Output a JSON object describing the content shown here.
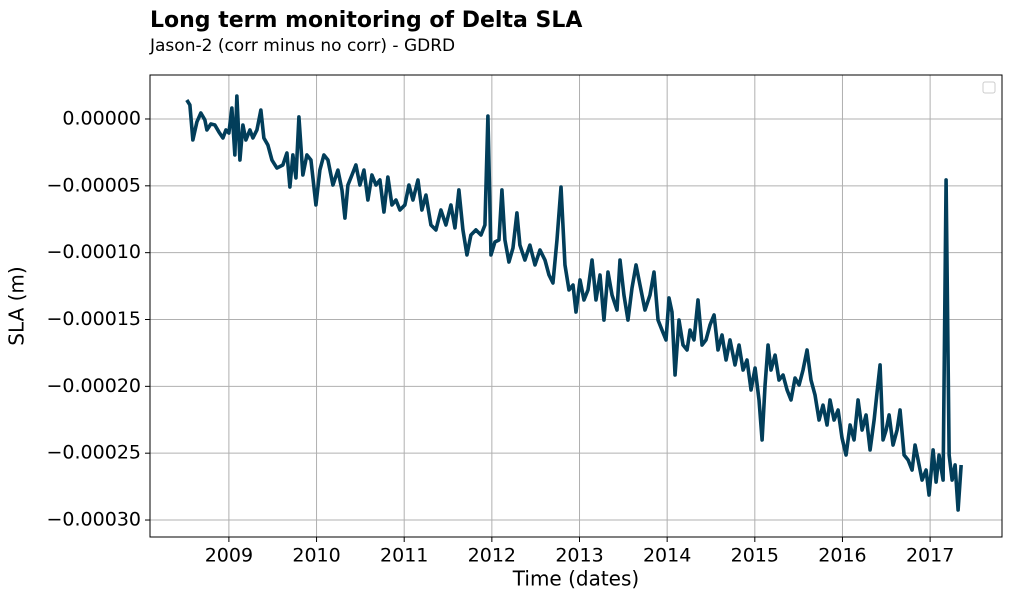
{
  "chart_data": {
    "type": "line",
    "title": "Long term monitoring of Delta SLA",
    "subtitle": "Jason-2 (corr minus no corr) - GDRD",
    "x_label": "Time (dates)",
    "y_label": "SLA (m)",
    "grid": true,
    "xlim": [
      2008.1,
      2017.82
    ],
    "ylim": [
      -0.0003127,
      3.29e-05
    ],
    "xticks": [
      2009,
      2010,
      2011,
      2012,
      2013,
      2014,
      2015,
      2016,
      2017
    ],
    "yticks": [
      {
        "value": 0,
        "label": "0.00000"
      },
      {
        "value": -5e-05,
        "label": "−0.00005"
      },
      {
        "value": -0.0001,
        "label": "−0.00010"
      },
      {
        "value": -0.00015,
        "label": "−0.00015"
      },
      {
        "value": -0.0002,
        "label": "−0.00020"
      },
      {
        "value": -0.00025,
        "label": "−0.00025"
      },
      {
        "value": -0.0003,
        "label": "−0.00030"
      }
    ],
    "x": [
      2008.52,
      2008.555,
      2008.589,
      2008.635,
      2008.68,
      2008.726,
      2008.749,
      2008.795,
      2008.84,
      2008.886,
      2008.932,
      2008.966,
      2009.0,
      2009.034,
      2009.068,
      2009.091,
      2009.126,
      2009.16,
      2009.194,
      2009.24,
      2009.274,
      2009.32,
      2009.365,
      2009.399,
      2009.445,
      2009.491,
      2009.548,
      2009.616,
      2009.662,
      2009.696,
      2009.73,
      2009.765,
      2009.799,
      2009.844,
      2009.89,
      2009.936,
      2009.993,
      2010.038,
      2010.084,
      2010.13,
      2010.187,
      2010.244,
      2010.29,
      2010.324,
      2010.358,
      2010.404,
      2010.449,
      2010.495,
      2010.541,
      2010.586,
      2010.632,
      2010.678,
      2010.723,
      2010.769,
      2010.814,
      2010.86,
      2010.906,
      2010.951,
      2011.008,
      2011.054,
      2011.1,
      2011.157,
      2011.202,
      2011.248,
      2011.305,
      2011.362,
      2011.419,
      2011.476,
      2011.533,
      2011.579,
      2011.624,
      2011.67,
      2011.716,
      2011.761,
      2011.818,
      2011.876,
      2011.921,
      2011.955,
      2011.99,
      2012.035,
      2012.081,
      2012.115,
      2012.149,
      2012.195,
      2012.241,
      2012.286,
      2012.32,
      2012.377,
      2012.434,
      2012.492,
      2012.549,
      2012.606,
      2012.652,
      2012.697,
      2012.743,
      2012.789,
      2012.834,
      2012.88,
      2012.926,
      2012.96,
      2013.006,
      2013.051,
      2013.097,
      2013.143,
      2013.188,
      2013.234,
      2013.279,
      2013.325,
      2013.371,
      2013.428,
      2013.462,
      2013.507,
      2013.553,
      2013.599,
      2013.645,
      2013.69,
      2013.747,
      2013.804,
      2013.85,
      2013.896,
      2013.941,
      2013.987,
      2014.021,
      2014.055,
      2014.09,
      2014.135,
      2014.181,
      2014.227,
      2014.261,
      2014.306,
      2014.352,
      2014.398,
      2014.443,
      2014.489,
      2014.535,
      2014.58,
      2014.626,
      2014.672,
      2014.717,
      2014.774,
      2014.82,
      2014.866,
      2014.911,
      2014.957,
      2015.003,
      2015.048,
      2015.083,
      2015.117,
      2015.151,
      2015.185,
      2015.231,
      2015.276,
      2015.322,
      2015.368,
      2015.413,
      2015.459,
      2015.505,
      2015.55,
      2015.596,
      2015.641,
      2015.687,
      2015.733,
      2015.778,
      2015.824,
      2015.858,
      2015.904,
      2015.95,
      2015.995,
      2016.041,
      2016.087,
      2016.132,
      2016.178,
      2016.224,
      2016.269,
      2016.315,
      2016.361,
      2016.395,
      2016.429,
      2016.463,
      2016.498,
      2016.532,
      2016.577,
      2016.623,
      2016.657,
      2016.703,
      2016.749,
      2016.794,
      2016.828,
      2016.863,
      2016.908,
      2016.954,
      2016.988,
      2017.034,
      2017.068,
      2017.102,
      2017.148,
      2017.182,
      2017.217,
      2017.251,
      2017.285,
      2017.319,
      2017.354
    ],
    "series": [
      {
        "color": "#023e5a",
        "values": [
          1.42e-05,
          1.05e-05,
          -1.57e-05,
          -2.2e-06,
          4.5e-06,
          -7e-07,
          -8.2e-06,
          -3.7e-06,
          -4.5e-06,
          -9.7e-06,
          -1.42e-05,
          -8.2e-06,
          -1.05e-05,
          8.2e-06,
          -2.69e-05,
          1.72e-05,
          -3.07e-05,
          -4.5e-06,
          -1.57e-05,
          -8.2e-06,
          -1.42e-05,
          -8.2e-06,
          6.7e-06,
          -1.42e-05,
          -1.95e-05,
          -3.07e-05,
          -3.67e-05,
          -3.44e-05,
          -2.54e-05,
          -5.09e-05,
          -2.69e-05,
          -4.41e-05,
          1.5e-06,
          -4.19e-05,
          -2.69e-05,
          -3.07e-05,
          -6.43e-05,
          -3.82e-05,
          -2.69e-05,
          -3.07e-05,
          -4.94e-05,
          -3.82e-05,
          -5.31e-05,
          -7.41e-05,
          -4.94e-05,
          -4.19e-05,
          -3.44e-05,
          -4.94e-05,
          -3.82e-05,
          -6.06e-05,
          -4.19e-05,
          -4.94e-05,
          -4.56e-05,
          -6.96e-05,
          -4.34e-05,
          -6.43e-05,
          -6.06e-05,
          -6.81e-05,
          -6.43e-05,
          -4.94e-05,
          -6.06e-05,
          -4.56e-05,
          -6.81e-05,
          -5.69e-05,
          -7.93e-05,
          -8.3e-05,
          -6.81e-05,
          -7.93e-05,
          -6.43e-05,
          -8.15e-05,
          -5.31e-05,
          -8.3e-05,
          -0.0001017,
          -8.68e-05,
          -8.3e-05,
          -8.68e-05,
          -7.93e-05,
          2.2e-06,
          -0.0001017,
          -9.2e-05,
          -9.05e-05,
          -5.31e-05,
          -9.05e-05,
          -0.000107,
          -9.65e-05,
          -7.03e-05,
          -9.43e-05,
          -0.0001055,
          -9.43e-05,
          -0.0001092,
          -9.8e-05,
          -0.0001055,
          -0.0001167,
          -0.0001227,
          -9.05e-05,
          -5.09e-05,
          -0.0001092,
          -0.0001279,
          -0.0001242,
          -0.0001444,
          -0.0001204,
          -0.0001354,
          -0.0001279,
          -0.0001055,
          -0.0001354,
          -0.0001167,
          -0.0001504,
          -0.0001145,
          -0.0001317,
          -0.0001429,
          -0.0001055,
          -0.0001317,
          -0.0001504,
          -0.0001264,
          -0.0001092,
          -0.0001242,
          -0.0001429,
          -0.0001317,
          -0.0001145,
          -0.0001504,
          -0.0001579,
          -0.0001653,
          -0.0001339,
          -0.0001444,
          -0.0001915,
          -0.0001504,
          -0.0001691,
          -0.0001728,
          -0.0001579,
          -0.0001653,
          -0.0001354,
          -0.0001691,
          -0.0001653,
          -0.0001541,
          -0.0001466,
          -0.0001728,
          -0.0001616,
          -0.0001803,
          -0.0001653,
          -0.000184,
          -0.0001691,
          -0.0001878,
          -0.0001803,
          -0.0002027,
          -0.0001863,
          -0.0002102,
          -0.0002401,
          -0.000199,
          -0.0001691,
          -0.0001878,
          -0.0001766,
          -0.0001953,
          -0.0001915,
          -0.0002027,
          -0.0002102,
          -0.0001938,
          -0.000199,
          -0.0001878,
          -0.0001728,
          -0.0001953,
          -0.0002065,
          -0.0002252,
          -0.000214,
          -0.0002289,
          -0.0002102,
          -0.0002252,
          -0.0002177,
          -0.0002386,
          -0.0002514,
          -0.0002289,
          -0.0002401,
          -0.0002102,
          -0.0002327,
          -0.0002214,
          -0.0002476,
          -0.0002252,
          -0.0002042,
          -0.000184,
          -0.0002401,
          -0.0002327,
          -0.0002214,
          -0.0002439,
          -0.0002327,
          -0.0002177,
          -0.0002514,
          -0.0002551,
          -0.0002626,
          -0.0002439,
          -0.0002551,
          -0.0002701,
          -0.0002626,
          -0.0002813,
          -0.0002476,
          -0.0002716,
          -0.0002514,
          -0.0002701,
          -4.56e-05,
          -0.0002514,
          -0.0002701,
          -0.0002588,
          -0.0002925,
          -0.0002588
        ]
      }
    ]
  }
}
